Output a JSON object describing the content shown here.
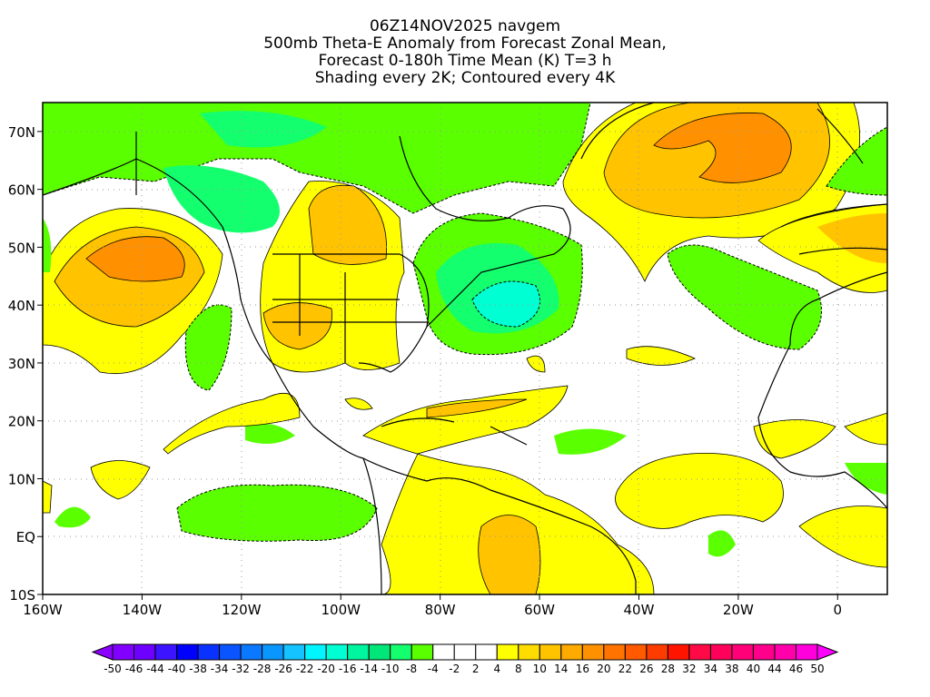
{
  "title": {
    "line1": "06Z14NOV2025 navgem",
    "line2": "500mb Theta-E Anomaly from Forecast Zonal Mean,",
    "line3": "Forecast 0-180h Time Mean (K) T=3 h",
    "line4": "Shading every 2K; Contoured every 4K"
  },
  "axes": {
    "lon_ticks": [
      {
        "label": "160W",
        "lon": -160
      },
      {
        "label": "140W",
        "lon": -140
      },
      {
        "label": "120W",
        "lon": -120
      },
      {
        "label": "100W",
        "lon": -100
      },
      {
        "label": "80W",
        "lon": -80
      },
      {
        "label": "60W",
        "lon": -60
      },
      {
        "label": "40W",
        "lon": -40
      },
      {
        "label": "20W",
        "lon": -20
      },
      {
        "label": "0",
        "lon": 0
      }
    ],
    "lat_ticks": [
      {
        "label": "70N",
        "lat": 70
      },
      {
        "label": "60N",
        "lat": 60
      },
      {
        "label": "50N",
        "lat": 50
      },
      {
        "label": "40N",
        "lat": 40
      },
      {
        "label": "30N",
        "lat": 30
      },
      {
        "label": "20N",
        "lat": 20
      },
      {
        "label": "10N",
        "lat": 10
      },
      {
        "label": "EQ",
        "lat": 0
      },
      {
        "label": "10S",
        "lat": -10
      }
    ],
    "lon_range": [
      -160,
      10
    ],
    "lat_range": [
      -10,
      75
    ]
  },
  "colorbar": {
    "labels": [
      "-50",
      "-46",
      "-44",
      "-40",
      "-38",
      "-34",
      "-32",
      "-28",
      "-26",
      "-22",
      "-20",
      "-16",
      "-14",
      "-10",
      "-8",
      "-4",
      "-2",
      "2",
      "4",
      "8",
      "10",
      "14",
      "16",
      "20",
      "22",
      "26",
      "28",
      "32",
      "34",
      "38",
      "40",
      "44",
      "46",
      "50"
    ],
    "colors": [
      "#8200ff",
      "#6e00ff",
      "#3c14ff",
      "#0000ff",
      "#0a32ff",
      "#0a55ff",
      "#0a78ff",
      "#0a96ff",
      "#14c3ff",
      "#00f5ff",
      "#00ffd2",
      "#00f5a0",
      "#00e678",
      "#14ff6e",
      "#5aff00",
      "#ffffff",
      "#ffffff",
      "#ffffff",
      "#ffff00",
      "#ffdc00",
      "#ffc300",
      "#ffaa00",
      "#ff9100",
      "#ff7300",
      "#ff5a00",
      "#ff3c00",
      "#ff1400",
      "#ff0a46",
      "#ff005a",
      "#ff0078",
      "#ff008c",
      "#ff00aa",
      "#ff00dc"
    ],
    "under_color": "#8c00ff",
    "over_color": "#ff00ff"
  }
}
